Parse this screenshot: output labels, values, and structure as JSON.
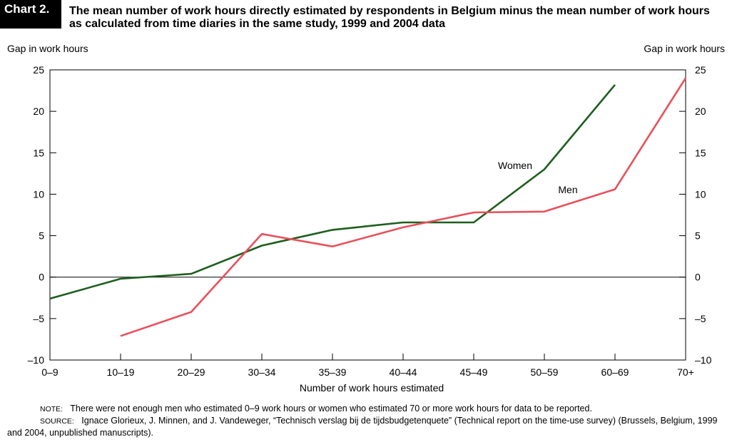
{
  "header": {
    "chart_label": "Chart 2.",
    "title": "The mean number of work hours directly estimated by respondents in Belgium minus the mean number of work hours as calculated from time diaries in the same study, 1999 and 2004 data"
  },
  "chart_data": {
    "type": "line",
    "title": "The mean number of work hours directly estimated by respondents in Belgium minus the mean number of work hours as calculated from time diaries in the same study, 1999 and 2004 data",
    "xlabel": "Number of work hours estimated",
    "ylabel_left": "Gap in work hours",
    "ylabel_right": "Gap in work hours",
    "categories": [
      "0–9",
      "10–19",
      "20–29",
      "30–34",
      "35–39",
      "40–44",
      "45–49",
      "50–59",
      "60–69",
      "70+"
    ],
    "ylim": [
      -10,
      25
    ],
    "yticks": [
      25,
      20,
      15,
      10,
      5,
      0,
      -5,
      -10
    ],
    "ytick_labels": [
      "25",
      "20",
      "15",
      "10",
      "5",
      "0",
      "–5",
      "–10"
    ],
    "series": [
      {
        "name": "Women",
        "color": "#1e5e1e",
        "values": [
          -2.6,
          -0.2,
          0.4,
          3.8,
          5.7,
          6.6,
          6.6,
          13.0,
          23.2,
          null
        ]
      },
      {
        "name": "Men",
        "color": "#e8505b",
        "values": [
          null,
          -7.1,
          -4.2,
          5.2,
          3.7,
          6.0,
          7.8,
          7.9,
          10.6,
          24.0
        ]
      }
    ]
  },
  "notes": {
    "note_label": "Note:",
    "note_text": "There were not enough men who estimated 0–9 work hours or women who estimated 70 or more work hours for data to be reported.",
    "source_label": "Source:",
    "source_text": "Ignace Glorieux, J. Minnen, and J. Vandeweger, “Technisch verslag bij de tijdsbudgetenquete” (Technical report on the time-use survey) (Brussels, Belgium, 1999 and 2004, unpublished manuscripts)."
  }
}
